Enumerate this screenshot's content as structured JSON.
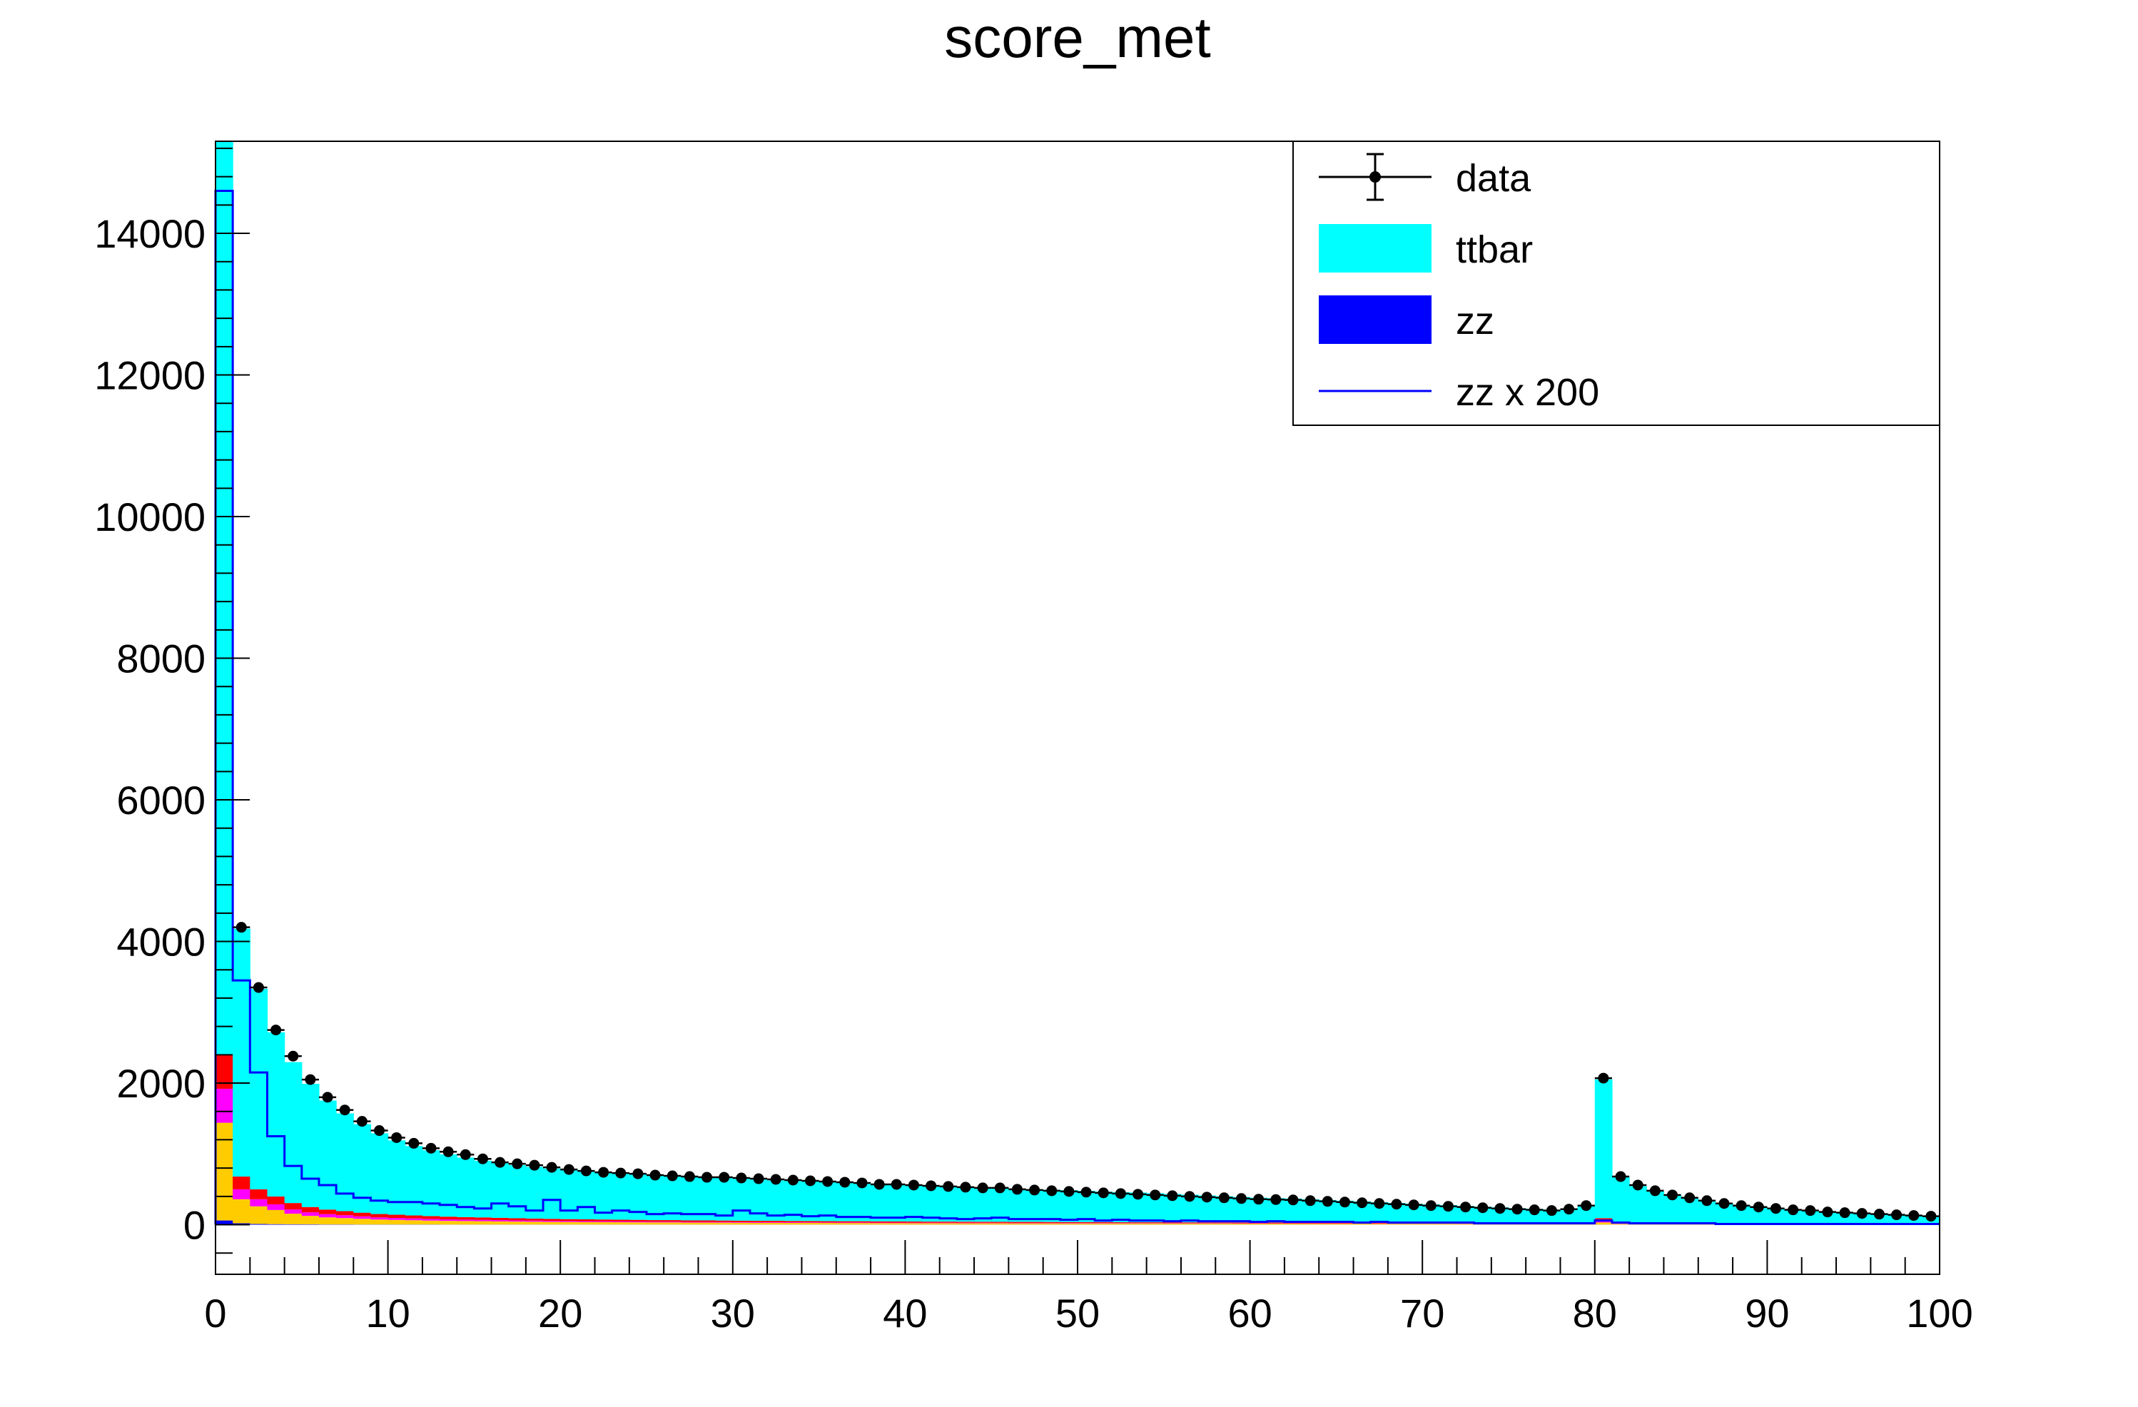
{
  "chart_data": {
    "type": "bar",
    "title": "score_met",
    "xlabel": "",
    "ylabel": "",
    "xlim": [
      0,
      100
    ],
    "ylim": [
      -700,
      15300
    ],
    "x_ticks": [
      0,
      10,
      20,
      30,
      40,
      50,
      60,
      70,
      80,
      90,
      100
    ],
    "y_ticks": [
      0,
      2000,
      4000,
      6000,
      8000,
      10000,
      12000,
      14000
    ],
    "bin_width": 1,
    "grid": false,
    "legend_position": "top-right",
    "legend": [
      {
        "label": "data",
        "style": "marker"
      },
      {
        "label": "ttbar",
        "style": "fill",
        "color": "#00ffff"
      },
      {
        "label": "zz",
        "style": "fill",
        "color": "#0000ff"
      },
      {
        "label": "zz x 200",
        "style": "line",
        "color": "#0000ff"
      }
    ],
    "stack_order": [
      "zz",
      "orange",
      "magenta",
      "red",
      "ttbar"
    ],
    "stack": {
      "zz": [
        60,
        20,
        10,
        8,
        6,
        5,
        4,
        4,
        3,
        3,
        3,
        3,
        3,
        2,
        2,
        2,
        2,
        2,
        2,
        2,
        2,
        2,
        2,
        2,
        2,
        2,
        2,
        2,
        2,
        2,
        2,
        2,
        2,
        2,
        2,
        2,
        2,
        2,
        2,
        2,
        2,
        2,
        2,
        2,
        2,
        2,
        2,
        2,
        2,
        2,
        2,
        2,
        2,
        2,
        2,
        2,
        2,
        2,
        2,
        2,
        2,
        2,
        2,
        2,
        2,
        2,
        2,
        2,
        2,
        2,
        2,
        2,
        2,
        2,
        2,
        2,
        2,
        2,
        2,
        2,
        2,
        2,
        2,
        2,
        2,
        2,
        2,
        2,
        2,
        2,
        2,
        2,
        2,
        2,
        2,
        2,
        2,
        2,
        2,
        2
      ],
      "orange": [
        1380,
        340,
        250,
        200,
        150,
        120,
        100,
        90,
        80,
        70,
        65,
        60,
        55,
        52,
        50,
        48,
        45,
        42,
        40,
        38,
        36,
        35,
        34,
        33,
        32,
        30,
        30,
        28,
        28,
        27,
        26,
        25,
        25,
        24,
        24,
        23,
        22,
        22,
        21,
        21,
        20,
        20,
        20,
        19,
        19,
        19,
        18,
        18,
        18,
        17,
        17,
        17,
        16,
        16,
        16,
        15,
        15,
        15,
        15,
        14,
        14,
        14,
        14,
        13,
        13,
        13,
        13,
        12,
        12,
        12,
        12,
        12,
        11,
        11,
        11,
        11,
        11,
        10,
        10,
        10,
        30,
        10,
        10,
        10,
        9,
        9,
        9,
        9,
        9,
        8,
        8,
        8,
        8,
        8,
        8,
        7,
        7,
        7,
        7,
        7
      ],
      "magenta": [
        480,
        140,
        100,
        80,
        60,
        50,
        45,
        40,
        35,
        30,
        28,
        26,
        24,
        22,
        20,
        19,
        18,
        17,
        16,
        15,
        14,
        13,
        13,
        12,
        12,
        11,
        11,
        10,
        10,
        10,
        9,
        9,
        9,
        9,
        8,
        8,
        8,
        8,
        8,
        7,
        7,
        7,
        7,
        7,
        7,
        6,
        6,
        6,
        6,
        6,
        6,
        6,
        5,
        5,
        5,
        5,
        5,
        5,
        5,
        5,
        5,
        4,
        4,
        4,
        4,
        4,
        4,
        4,
        4,
        4,
        4,
        4,
        3,
        3,
        3,
        3,
        3,
        3,
        3,
        3,
        20,
        3,
        3,
        3,
        3,
        3,
        3,
        3,
        3,
        3,
        3,
        3,
        3,
        3,
        3,
        3,
        2,
        2,
        2,
        2
      ],
      "red": [
        480,
        180,
        140,
        110,
        90,
        75,
        65,
        58,
        52,
        48,
        45,
        42,
        40,
        38,
        36,
        34,
        32,
        30,
        29,
        28,
        27,
        26,
        25,
        24,
        23,
        22,
        22,
        21,
        21,
        20,
        20,
        19,
        19,
        18,
        18,
        17,
        17,
        17,
        16,
        16,
        16,
        15,
        15,
        15,
        14,
        14,
        14,
        14,
        13,
        13,
        13,
        13,
        12,
        12,
        12,
        12,
        12,
        11,
        11,
        11,
        11,
        11,
        10,
        10,
        10,
        10,
        10,
        10,
        9,
        9,
        9,
        9,
        9,
        9,
        9,
        8,
        8,
        8,
        8,
        8,
        40,
        8,
        8,
        8,
        8,
        7,
        7,
        7,
        7,
        7,
        7,
        7,
        7,
        6,
        6,
        6,
        6,
        6,
        6,
        6
      ],
      "ttbar": [
        12900,
        3500,
        2830,
        2320,
        1990,
        1740,
        1540,
        1380,
        1250,
        1140,
        1050,
        980,
        930,
        880,
        840,
        800,
        770,
        750,
        730,
        710,
        690,
        670,
        660,
        650,
        640,
        630,
        620,
        610,
        600,
        600,
        590,
        580,
        570,
        565,
        560,
        550,
        540,
        530,
        520,
        515,
        510,
        500,
        495,
        490,
        485,
        480,
        470,
        460,
        455,
        450,
        440,
        430,
        425,
        420,
        410,
        400,
        390,
        380,
        370,
        360,
        350,
        345,
        340,
        330,
        320,
        310,
        300,
        290,
        280,
        270,
        260,
        250,
        240,
        230,
        220,
        210,
        200,
        190,
        200,
        240,
        1960,
        650,
        520,
        450,
        400,
        360,
        320,
        280,
        250,
        230,
        210,
        190,
        175,
        160,
        150,
        140,
        130,
        120,
        110,
        100
      ]
    },
    "data_points": [
      15400,
      4200,
      3350,
      2750,
      2380,
      2050,
      1800,
      1620,
      1460,
      1330,
      1230,
      1150,
      1080,
      1030,
      990,
      930,
      880,
      860,
      840,
      810,
      780,
      760,
      740,
      730,
      720,
      700,
      690,
      680,
      670,
      670,
      660,
      650,
      640,
      630,
      620,
      610,
      600,
      590,
      570,
      570,
      560,
      550,
      540,
      530,
      520,
      520,
      500,
      490,
      480,
      470,
      460,
      450,
      440,
      430,
      420,
      410,
      400,
      390,
      380,
      370,
      360,
      355,
      350,
      340,
      330,
      320,
      310,
      300,
      290,
      280,
      270,
      260,
      250,
      240,
      230,
      220,
      210,
      200,
      220,
      270,
      2070,
      680,
      560,
      480,
      420,
      380,
      340,
      300,
      270,
      250,
      230,
      210,
      200,
      180,
      170,
      160,
      150,
      140,
      130,
      120
    ],
    "zz_x200": [
      14600,
      3450,
      2150,
      1250,
      830,
      650,
      560,
      440,
      380,
      340,
      320,
      320,
      300,
      280,
      250,
      230,
      300,
      260,
      200,
      350,
      200,
      250,
      170,
      200,
      180,
      150,
      160,
      150,
      150,
      130,
      200,
      160,
      130,
      140,
      120,
      130,
      110,
      110,
      100,
      100,
      110,
      100,
      90,
      80,
      90,
      100,
      80,
      80,
      80,
      70,
      80,
      60,
      70,
      60,
      60,
      50,
      60,
      50,
      50,
      50,
      40,
      50,
      40,
      40,
      40,
      40,
      30,
      40,
      30,
      30,
      30,
      30,
      30,
      20,
      20,
      20,
      20,
      20,
      20,
      20,
      60,
      30,
      20,
      20,
      20,
      20,
      20,
      10,
      10,
      10,
      10,
      10,
      10,
      10,
      10,
      10,
      10,
      10,
      10,
      10
    ]
  },
  "colors": {
    "ttbar": "#00ffff",
    "zz": "#0000ff",
    "orange": "#ffcc00",
    "magenta": "#ff00ff",
    "red": "#ff0000",
    "zz_line": "#0000ff",
    "data": "#000000"
  }
}
